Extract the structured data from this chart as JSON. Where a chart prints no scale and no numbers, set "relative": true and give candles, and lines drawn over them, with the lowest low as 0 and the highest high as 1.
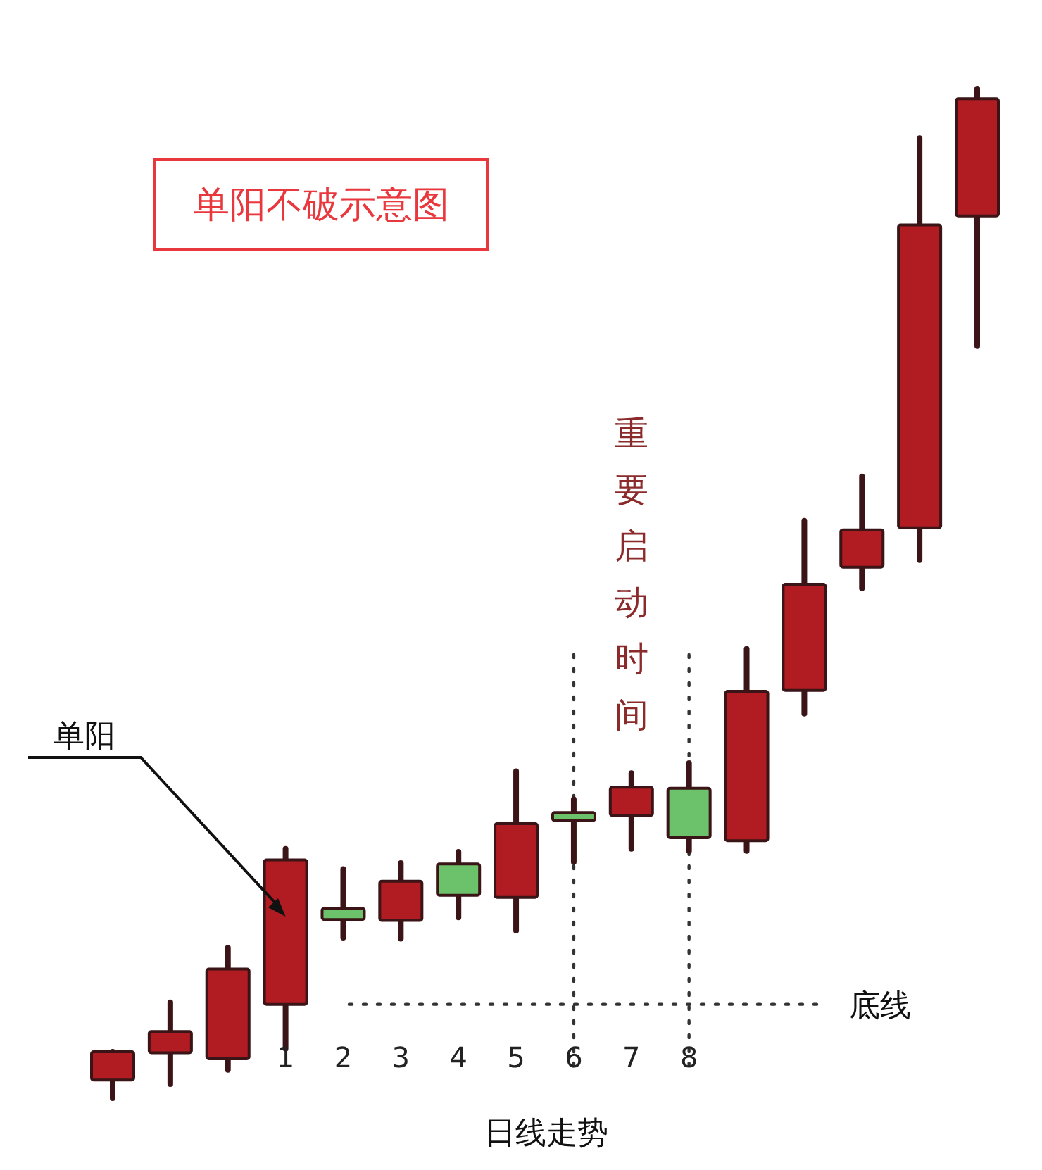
{
  "chart_data": {
    "type": "candlestick",
    "title": "单阳不破示意图",
    "xlabel": "日线走势",
    "relative": true,
    "categories": [
      null,
      null,
      null,
      "1",
      "2",
      "3",
      "4",
      "5",
      "6",
      "7",
      "8",
      null,
      null,
      null,
      null,
      null
    ],
    "ohlc": [
      [
        0.018,
        0.046,
        0,
        0.046
      ],
      [
        0.045,
        0.095,
        0.014,
        0.066
      ],
      [
        0.039,
        0.149,
        0.028,
        0.128
      ],
      [
        0.093,
        0.247,
        0.049,
        0.236
      ],
      [
        0.188,
        0.227,
        0.159,
        0.177
      ],
      [
        0.176,
        0.233,
        0.158,
        0.215
      ],
      [
        0.232,
        0.244,
        0.179,
        0.201
      ],
      [
        0.199,
        0.324,
        0.166,
        0.272
      ],
      [
        0.283,
        0.296,
        0.234,
        0.275
      ],
      [
        0.28,
        0.322,
        0.247,
        0.308
      ],
      [
        0.307,
        0.332,
        0.245,
        0.258
      ],
      [
        0.255,
        0.445,
        0.245,
        0.403
      ],
      [
        0.404,
        0.572,
        0.381,
        0.509
      ],
      [
        0.526,
        0.616,
        0.505,
        0.563
      ],
      [
        0.565,
        0.951,
        0.533,
        0.865
      ],
      [
        0.874,
        1,
        0.745,
        0.99
      ]
    ],
    "colors": [
      "#b01c22",
      "#b01c22",
      "#b01c22",
      "#b01c22",
      "#6cc26a",
      "#b01c22",
      "#6cc26a",
      "#b01c22",
      "#6cc26a",
      "#b01c22",
      "#6cc26a",
      "#b01c22",
      "#b01c22",
      "#b01c22",
      "#b01c22",
      "#b01c22"
    ],
    "ref_lines": [
      {
        "axis": "x",
        "value": "6",
        "line_style": "dotted"
      },
      {
        "axis": "x",
        "value": "8",
        "line_style": "dotted"
      },
      {
        "axis": "y",
        "value": 0.093,
        "label": "底线",
        "line_style": "dotted"
      }
    ],
    "annotations": [
      {
        "text": "单阳",
        "x": "1",
        "y": 0.18
      },
      "重要启动时间"
    ]
  }
}
